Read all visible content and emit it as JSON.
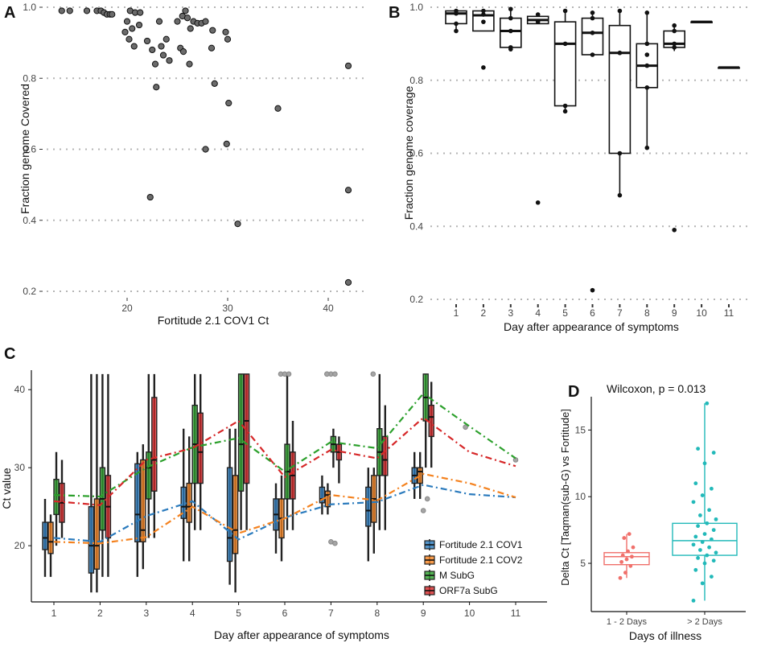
{
  "chart_data": [
    {
      "id": "A",
      "type": "scatter",
      "panel_label": "A",
      "xlabel": "Fortitude 2.1 COV1 Ct",
      "ylabel": "Fraction genome Covered",
      "xlim": [
        12,
        44
      ],
      "ylim": [
        0.2,
        1.0
      ],
      "x_ticks": [
        20,
        30,
        40
      ],
      "y_ticks": [
        0.2,
        0.4,
        0.6,
        0.8,
        1.0
      ],
      "y_tick_labels": [
        "0.2",
        "0.4",
        "0.6",
        "0.8",
        "1.0"
      ],
      "points": [
        {
          "x": 13.5,
          "y": 0.99
        },
        {
          "x": 14.3,
          "y": 0.99
        },
        {
          "x": 16.0,
          "y": 0.99
        },
        {
          "x": 17.0,
          "y": 0.99
        },
        {
          "x": 17.4,
          "y": 0.99
        },
        {
          "x": 17.7,
          "y": 0.985
        },
        {
          "x": 18.0,
          "y": 0.98
        },
        {
          "x": 18.3,
          "y": 0.98
        },
        {
          "x": 18.5,
          "y": 0.98
        },
        {
          "x": 20.3,
          "y": 0.99
        },
        {
          "x": 20.8,
          "y": 0.985
        },
        {
          "x": 21.3,
          "y": 0.985
        },
        {
          "x": 20.0,
          "y": 0.96
        },
        {
          "x": 20.5,
          "y": 0.94
        },
        {
          "x": 21.2,
          "y": 0.95
        },
        {
          "x": 19.8,
          "y": 0.93
        },
        {
          "x": 20.2,
          "y": 0.91
        },
        {
          "x": 20.7,
          "y": 0.89
        },
        {
          "x": 22.0,
          "y": 0.905
        },
        {
          "x": 22.5,
          "y": 0.88
        },
        {
          "x": 22.8,
          "y": 0.84
        },
        {
          "x": 22.9,
          "y": 0.775
        },
        {
          "x": 23.2,
          "y": 0.96
        },
        {
          "x": 23.4,
          "y": 0.89
        },
        {
          "x": 23.6,
          "y": 0.865
        },
        {
          "x": 23.9,
          "y": 0.91
        },
        {
          "x": 24.2,
          "y": 0.85
        },
        {
          "x": 25.0,
          "y": 0.96
        },
        {
          "x": 25.5,
          "y": 0.975
        },
        {
          "x": 25.8,
          "y": 0.99
        },
        {
          "x": 25.3,
          "y": 0.885
        },
        {
          "x": 25.6,
          "y": 0.875
        },
        {
          "x": 26.0,
          "y": 0.97
        },
        {
          "x": 26.3,
          "y": 0.94
        },
        {
          "x": 26.6,
          "y": 0.96
        },
        {
          "x": 26.2,
          "y": 0.84
        },
        {
          "x": 27.0,
          "y": 0.955
        },
        {
          "x": 27.4,
          "y": 0.955
        },
        {
          "x": 27.8,
          "y": 0.96
        },
        {
          "x": 28.5,
          "y": 0.935
        },
        {
          "x": 28.4,
          "y": 0.885
        },
        {
          "x": 28.7,
          "y": 0.785
        },
        {
          "x": 29.8,
          "y": 0.93
        },
        {
          "x": 30.0,
          "y": 0.91
        },
        {
          "x": 30.1,
          "y": 0.73
        },
        {
          "x": 27.8,
          "y": 0.6
        },
        {
          "x": 29.9,
          "y": 0.615
        },
        {
          "x": 22.3,
          "y": 0.465
        },
        {
          "x": 31.0,
          "y": 0.39
        },
        {
          "x": 35.0,
          "y": 0.715
        },
        {
          "x": 42.0,
          "y": 0.835
        },
        {
          "x": 42.0,
          "y": 0.485
        },
        {
          "x": 42.0,
          "y": 0.225
        }
      ]
    },
    {
      "id": "B",
      "type": "box",
      "panel_label": "B",
      "xlabel": "Day after appearance of symptoms",
      "ylabel": "Fraction genome coverage",
      "categories": [
        "1",
        "2",
        "3",
        "4",
        "5",
        "6",
        "7",
        "8",
        "9",
        "10",
        "11"
      ],
      "ylim": [
        0.2,
        1.0
      ],
      "y_ticks": [
        0.2,
        0.4,
        0.6,
        0.8,
        1.0
      ],
      "y_tick_labels": [
        "0.2",
        "0.4",
        "0.6",
        "0.8",
        "1.0"
      ],
      "boxes": [
        {
          "min": 0.935,
          "q1": 0.955,
          "median": 0.983,
          "q3": 0.99,
          "max": 0.99,
          "outliers": [],
          "points": [
            0.935,
            0.955,
            0.983,
            0.99
          ]
        },
        {
          "min": 0.935,
          "q1": 0.935,
          "median": 0.978,
          "q3": 0.99,
          "max": 0.99,
          "outliers": [
            0.835
          ],
          "points": [
            0.96,
            0.98,
            0.99
          ]
        },
        {
          "min": 0.885,
          "q1": 0.89,
          "median": 0.935,
          "q3": 0.97,
          "max": 0.995,
          "outliers": [],
          "points": [
            0.885,
            0.89,
            0.935,
            0.97,
            0.995
          ]
        },
        {
          "min": 0.955,
          "q1": 0.955,
          "median": 0.965,
          "q3": 0.975,
          "max": 0.98,
          "outliers": [
            0.465
          ],
          "points": [
            0.96,
            0.98
          ]
        },
        {
          "min": 0.715,
          "q1": 0.73,
          "median": 0.9,
          "q3": 0.96,
          "max": 0.99,
          "outliers": [],
          "points": [
            0.715,
            0.73,
            0.9,
            0.99
          ]
        },
        {
          "min": 0.87,
          "q1": 0.87,
          "median": 0.93,
          "q3": 0.97,
          "max": 0.985,
          "outliers": [
            0.225
          ],
          "points": [
            0.87,
            0.93,
            0.97,
            0.985
          ]
        },
        {
          "min": 0.485,
          "q1": 0.6,
          "median": 0.875,
          "q3": 0.95,
          "max": 0.99,
          "outliers": [],
          "points": [
            0.485,
            0.6,
            0.875,
            0.99
          ]
        },
        {
          "min": 0.615,
          "q1": 0.78,
          "median": 0.84,
          "q3": 0.9,
          "max": 0.985,
          "outliers": [],
          "points": [
            0.615,
            0.78,
            0.84,
            0.87,
            0.9,
            0.985
          ]
        },
        {
          "min": 0.88,
          "q1": 0.89,
          "median": 0.9,
          "q3": 0.935,
          "max": 0.95,
          "outliers": [
            0.39
          ],
          "points": [
            0.89,
            0.9,
            0.935,
            0.95
          ]
        },
        {
          "min": 0.96,
          "q1": 0.96,
          "median": 0.96,
          "q3": 0.96,
          "max": 0.96,
          "outliers": [],
          "points": []
        },
        {
          "min": 0.835,
          "q1": 0.835,
          "median": 0.835,
          "q3": 0.835,
          "max": 0.835,
          "outliers": [],
          "points": []
        }
      ]
    },
    {
      "id": "C",
      "type": "box",
      "panel_label": "C",
      "xlabel": "Day after appearance of symptoms",
      "ylabel": "Ct value",
      "categories": [
        "1",
        "2",
        "3",
        "4",
        "5",
        "6",
        "7",
        "8",
        "9",
        "10",
        "11"
      ],
      "ylim": [
        13,
        42.5
      ],
      "y_ticks": [
        20,
        30,
        40
      ],
      "legend_position": "bottom-right",
      "series": [
        {
          "name": "Fortitude 2.1 COV1",
          "color": "#2b7bbd",
          "means": [
            21.0,
            20.5,
            23.8,
            25.7,
            20.8,
            23.6,
            25.3,
            25.6,
            27.8,
            26.6,
            26.2
          ],
          "boxes": [
            {
              "q1": 19.5,
              "median": 21,
              "q3": 23,
              "min": 16,
              "max": 26
            },
            {
              "q1": 16.5,
              "median": 20,
              "q3": 25,
              "min": 14,
              "max": 42
            },
            {
              "q1": 20.5,
              "median": 24,
              "q3": 30.5,
              "min": 16,
              "max": 32
            },
            {
              "q1": 23.5,
              "median": 25,
              "q3": 27.5,
              "min": 18,
              "max": 35
            },
            {
              "q1": 18,
              "median": 21,
              "q3": 30,
              "min": 15,
              "max": 35
            },
            {
              "q1": 22,
              "median": 24,
              "q3": 26,
              "min": 19,
              "max": 28
            },
            {
              "q1": 25.5,
              "median": 26,
              "q3": 27.5,
              "min": 24,
              "max": 29
            },
            {
              "q1": 22.5,
              "median": 24.5,
              "q3": 27.5,
              "min": 18,
              "max": 30
            },
            {
              "q1": 28,
              "median": 29,
              "q3": 30,
              "min": 26,
              "max": 32
            },
            null,
            null
          ]
        },
        {
          "name": "Fortitude 2.1 COV2",
          "color": "#f4821f",
          "means": [
            20.5,
            20.3,
            21.1,
            25.0,
            21.6,
            23.5,
            26.5,
            25.8,
            29.2,
            28.0,
            26.2
          ],
          "boxes": [
            {
              "q1": 19,
              "median": 20.5,
              "q3": 23,
              "min": 16,
              "max": 24
            },
            {
              "q1": 17,
              "median": 20,
              "q3": 26,
              "min": 14,
              "max": 42
            },
            {
              "q1": 20.5,
              "median": 22,
              "q3": 31,
              "min": 17,
              "max": 33
            },
            {
              "q1": 23,
              "median": 25,
              "q3": 28,
              "min": 18,
              "max": 34
            },
            {
              "q1": 19,
              "median": 22,
              "q3": 29,
              "min": 14,
              "max": 35
            },
            {
              "q1": 21,
              "median": 23.5,
              "q3": 26,
              "min": 18,
              "max": 29
            },
            {
              "q1": 25,
              "median": 26.5,
              "q3": 27,
              "min": 24,
              "max": 28
            },
            {
              "q1": 23,
              "median": 26,
              "q3": 29,
              "min": 19,
              "max": 30
            },
            {
              "q1": 28,
              "median": 29.5,
              "q3": 30,
              "min": 26,
              "max": 32
            },
            null,
            null
          ]
        },
        {
          "name": "M SubG",
          "color": "#2ca02c",
          "means": [
            26.5,
            26.3,
            30.0,
            32.6,
            33.8,
            29.5,
            33.3,
            32.5,
            39.5,
            35.3,
            31.2
          ],
          "boxes": [
            {
              "q1": 24,
              "median": 26.5,
              "q3": 28.5,
              "min": 20,
              "max": 32
            },
            {
              "q1": 22,
              "median": 26,
              "q3": 30,
              "min": 16,
              "max": 42
            },
            {
              "q1": 26,
              "median": 30,
              "q3": 32,
              "min": 21,
              "max": 42
            },
            {
              "q1": 28,
              "median": 33,
              "q3": 38,
              "min": 22,
              "max": 42
            },
            {
              "q1": 27,
              "median": 33,
              "q3": 42,
              "min": 22,
              "max": 42
            },
            {
              "q1": 26,
              "median": 29.5,
              "q3": 33,
              "min": 22,
              "max": 42
            },
            {
              "q1": 32,
              "median": 33,
              "q3": 34,
              "min": 30,
              "max": 35
            },
            {
              "q1": 29,
              "median": 32,
              "q3": 35,
              "min": 22,
              "max": 42
            },
            {
              "q1": 36,
              "median": 39,
              "q3": 42,
              "min": 30,
              "max": 42
            },
            null,
            null
          ]
        },
        {
          "name": "ORF7a SubG",
          "color": "#d62728",
          "means": [
            25.7,
            25.2,
            31.0,
            32.5,
            36.0,
            28.8,
            32.3,
            31.2,
            36.4,
            32.0,
            30.2
          ],
          "boxes": [
            {
              "q1": 23,
              "median": 25.5,
              "q3": 28,
              "min": 21,
              "max": 31
            },
            {
              "q1": 21,
              "median": 25,
              "q3": 29,
              "min": 16,
              "max": 42
            },
            {
              "q1": 27,
              "median": 31,
              "q3": 39,
              "min": 21,
              "max": 42
            },
            {
              "q1": 28,
              "median": 32,
              "q3": 37,
              "min": 22,
              "max": 42
            },
            {
              "q1": 28,
              "median": 36,
              "q3": 42,
              "min": 22,
              "max": 42
            },
            {
              "q1": 26,
              "median": 29,
              "q3": 32,
              "min": 22,
              "max": 36
            },
            {
              "q1": 31,
              "median": 32,
              "q3": 33,
              "min": 28,
              "max": 34
            },
            {
              "q1": 29,
              "median": 31,
              "q3": 34,
              "min": 22,
              "max": 38
            },
            {
              "q1": 34,
              "median": 36.5,
              "q3": 38,
              "min": 30,
              "max": 41
            },
            null,
            null
          ]
        }
      ],
      "outliers": [
        [
          6,
          42
        ],
        [
          6,
          42
        ],
        [
          6,
          42
        ],
        [
          7,
          42
        ],
        [
          7,
          42
        ],
        [
          7,
          42
        ],
        [
          7,
          42
        ],
        [
          7,
          20.5
        ],
        [
          7,
          20.3
        ],
        [
          8,
          42
        ],
        [
          9,
          24.5
        ],
        [
          9,
          26
        ],
        [
          10,
          35.2
        ],
        [
          11,
          31
        ]
      ]
    },
    {
      "id": "D",
      "type": "box",
      "panel_label": "D",
      "title": "Wilcoxon, p = 0.013",
      "xlabel": "Days of illness",
      "ylabel": "Delta Ct  [Taqman(sub-G) vs Fortitude]",
      "categories": [
        "1 - 2 Days",
        "> 2 Days"
      ],
      "ylim": [
        1.5,
        17.5
      ],
      "y_ticks": [
        5,
        10,
        15
      ],
      "groups": [
        {
          "name": "1 - 2 Days",
          "color": "#f0706b",
          "q1": 4.9,
          "median": 5.5,
          "q3": 5.8,
          "min": 3.9,
          "max": 7.2,
          "points": [
            3.9,
            4.3,
            4.8,
            5.1,
            5.3,
            5.5,
            5.6,
            5.9,
            6.2,
            6.9,
            7.2
          ]
        },
        {
          "name": "> 2 Days",
          "color": "#22b9b9",
          "q1": 5.6,
          "median": 6.7,
          "q3": 8.0,
          "min": 2.2,
          "max": 17.0,
          "points": [
            2.2,
            3.5,
            4.0,
            4.5,
            5.0,
            5.2,
            5.4,
            5.6,
            5.8,
            6.0,
            6.2,
            6.4,
            6.6,
            6.8,
            7.0,
            7.2,
            7.5,
            7.8,
            8.0,
            8.3,
            8.6,
            9.0,
            9.6,
            10.1,
            10.6,
            11.0,
            12.5,
            13.3,
            13.6,
            17.0
          ]
        }
      ]
    }
  ]
}
